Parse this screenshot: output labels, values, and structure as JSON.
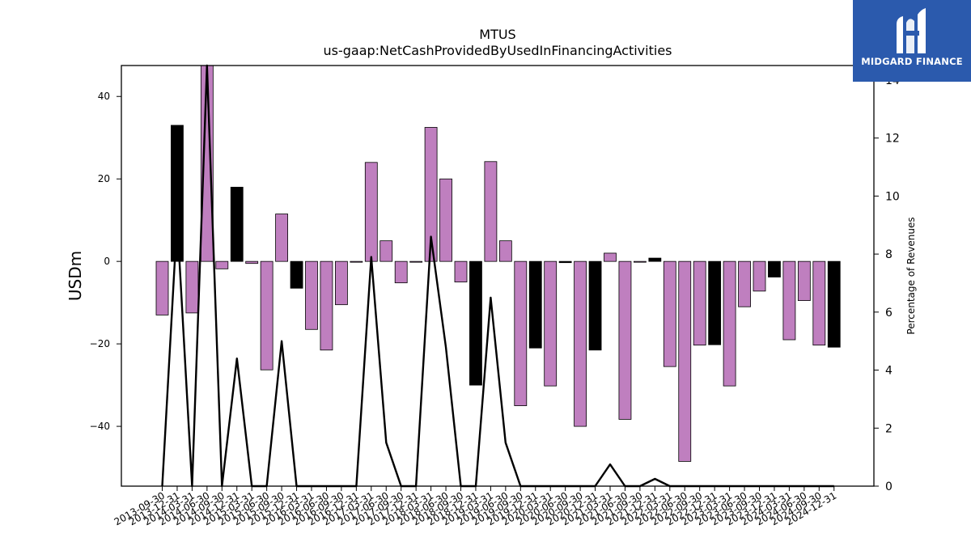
{
  "chart_data": {
    "type": "bar",
    "title": "MTUS",
    "subtitle": "us-gaap:NetCashProvidedByUsedInFinancingActivities",
    "ylabel": "USDm",
    "y2label": "Percentage of Revenues",
    "ylim": [
      -54.5,
      47.5
    ],
    "y2lim": [
      0,
      14.5
    ],
    "yticks": [
      -40,
      -20,
      0,
      20,
      40
    ],
    "y2ticks": [
      0,
      2,
      4,
      6,
      8,
      10,
      12,
      14
    ],
    "categories": [
      "2013-09-30",
      "2013-12-31",
      "2014-03-31",
      "2014-06-30",
      "2014-09-30",
      "2014-12-31",
      "2015-03-31",
      "2015-06-30",
      "2015-09-30",
      "2015-12-31",
      "2016-03-31",
      "2016-06-30",
      "2016-09-30",
      "2016-12-31",
      "2017-03-31",
      "2017-06-30",
      "2017-09-30",
      "2017-12-31",
      "2018-03-31",
      "2018-06-30",
      "2018-09-30",
      "2018-12-31",
      "2019-03-31",
      "2019-06-30",
      "2019-09-30",
      "2019-12-31",
      "2020-03-31",
      "2020-06-30",
      "2020-09-30",
      "2020-12-31",
      "2021-03-31",
      "2021-06-30",
      "2021-09-30",
      "2021-12-31",
      "2022-03-31",
      "2022-06-30",
      "2022-09-30",
      "2022-12-31",
      "2023-03-31",
      "2023-06-30",
      "2023-09-30",
      "2023-12-31",
      "2024-03-31",
      "2024-06-30",
      "2024-09-30",
      "2024-12-31"
    ],
    "series": [
      {
        "values": [
          -13,
          33,
          -12.5,
          52,
          -1.8,
          18,
          -0.5,
          -26.3,
          11.5,
          -6.5,
          -16.5,
          -21.5,
          -10.5,
          -0.2,
          24,
          5,
          -5.2,
          -0.2,
          32.5,
          20,
          -5,
          -30,
          24.2,
          5,
          -35,
          -21,
          -30.2,
          -0.3,
          -40,
          -21.5,
          2,
          -38.3,
          -0.2,
          0.8,
          -25.5,
          -48.5,
          -20.3,
          -20.2,
          -30.2,
          -11,
          -7.2,
          -3.8,
          -19,
          -9.5,
          -20.3,
          -20.8
        ],
        "colors": [
          "#bf7fbf",
          "#000000",
          "#bf7fbf",
          "#bf7fbf",
          "#bf7fbf",
          "#000000",
          "#bf7fbf",
          "#bf7fbf",
          "#bf7fbf",
          "#000000",
          "#bf7fbf",
          "#bf7fbf",
          "#bf7fbf",
          "#bf7fbf",
          "#bf7fbf",
          "#bf7fbf",
          "#bf7fbf",
          "#bf7fbf",
          "#bf7fbf",
          "#bf7fbf",
          "#bf7fbf",
          "#000000",
          "#bf7fbf",
          "#bf7fbf",
          "#bf7fbf",
          "#000000",
          "#bf7fbf",
          "#000000",
          "#bf7fbf",
          "#000000",
          "#bf7fbf",
          "#bf7fbf",
          "#bf7fbf",
          "#000000",
          "#bf7fbf",
          "#bf7fbf",
          "#bf7fbf",
          "#000000",
          "#bf7fbf",
          "#bf7fbf",
          "#bf7fbf",
          "#000000",
          "#bf7fbf",
          "#bf7fbf",
          "#bf7fbf",
          "#000000"
        ]
      },
      {
        "type": "line",
        "axis": "right",
        "values": [
          0,
          9.2,
          0,
          14.7,
          0,
          4.4,
          0,
          0,
          5,
          0,
          0,
          0,
          0,
          0,
          7.9,
          1.5,
          0,
          0,
          8.6,
          4.8,
          0,
          0,
          6.5,
          1.5,
          0,
          0,
          0,
          0,
          0,
          0,
          0.75,
          0,
          0,
          0.25,
          0,
          0,
          0,
          0,
          0,
          0,
          0,
          0,
          0,
          0,
          0,
          0
        ]
      }
    ],
    "grid": false
  },
  "logo": {
    "text": "MIDGARD FINANCE"
  }
}
